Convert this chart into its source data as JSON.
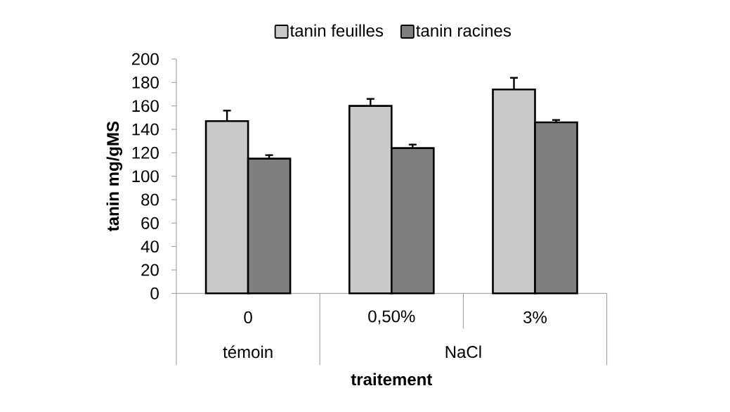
{
  "chart_data": {
    "type": "bar",
    "xlabel": "traitement",
    "ylabel": "tanin mg/gMS",
    "categories": [
      "0",
      "0,50%",
      "3%"
    ],
    "series": [
      {
        "name": "tanin feuilles",
        "color": "#c9c9c9",
        "values": [
          147,
          160,
          174
        ],
        "errors": [
          [
            147,
            156
          ],
          [
            160,
            166
          ],
          [
            174,
            184
          ]
        ]
      },
      {
        "name": "tanin racines",
        "color": "#7f7f7f",
        "values": [
          115,
          124,
          146
        ],
        "errors": [
          [
            115,
            118
          ],
          [
            124,
            127
          ],
          [
            146,
            148
          ]
        ]
      }
    ],
    "annotations": [
      "témoin",
      "NaCl"
    ],
    "ylim": [
      0,
      200
    ],
    "yticks": [
      0,
      20,
      40,
      60,
      80,
      100,
      120,
      140,
      160,
      180,
      200
    ],
    "legend": "top"
  }
}
